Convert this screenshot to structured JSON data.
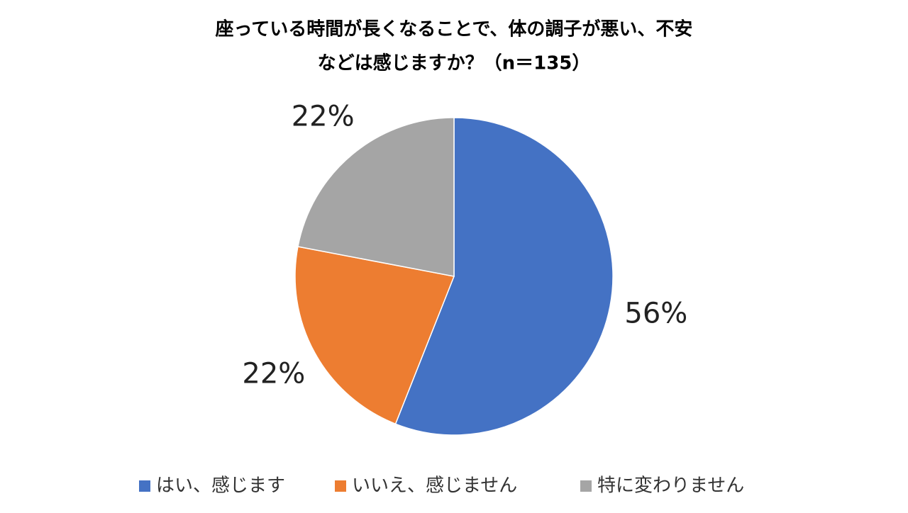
{
  "chart_data": {
    "type": "pie",
    "title": [
      "座っている時間が長くなることで、体の調子が悪い、不安",
      "などは感じますか？（n＝135）"
    ],
    "categories": [
      "はい、感じます",
      "いいえ、感じません",
      "特に変わりません"
    ],
    "values": [
      56,
      22,
      22
    ],
    "value_labels": [
      "56%",
      "22%",
      "22%"
    ],
    "colors": [
      "#4472c4",
      "#ed7d31",
      "#a5a5a5"
    ],
    "legend": "bottom"
  }
}
